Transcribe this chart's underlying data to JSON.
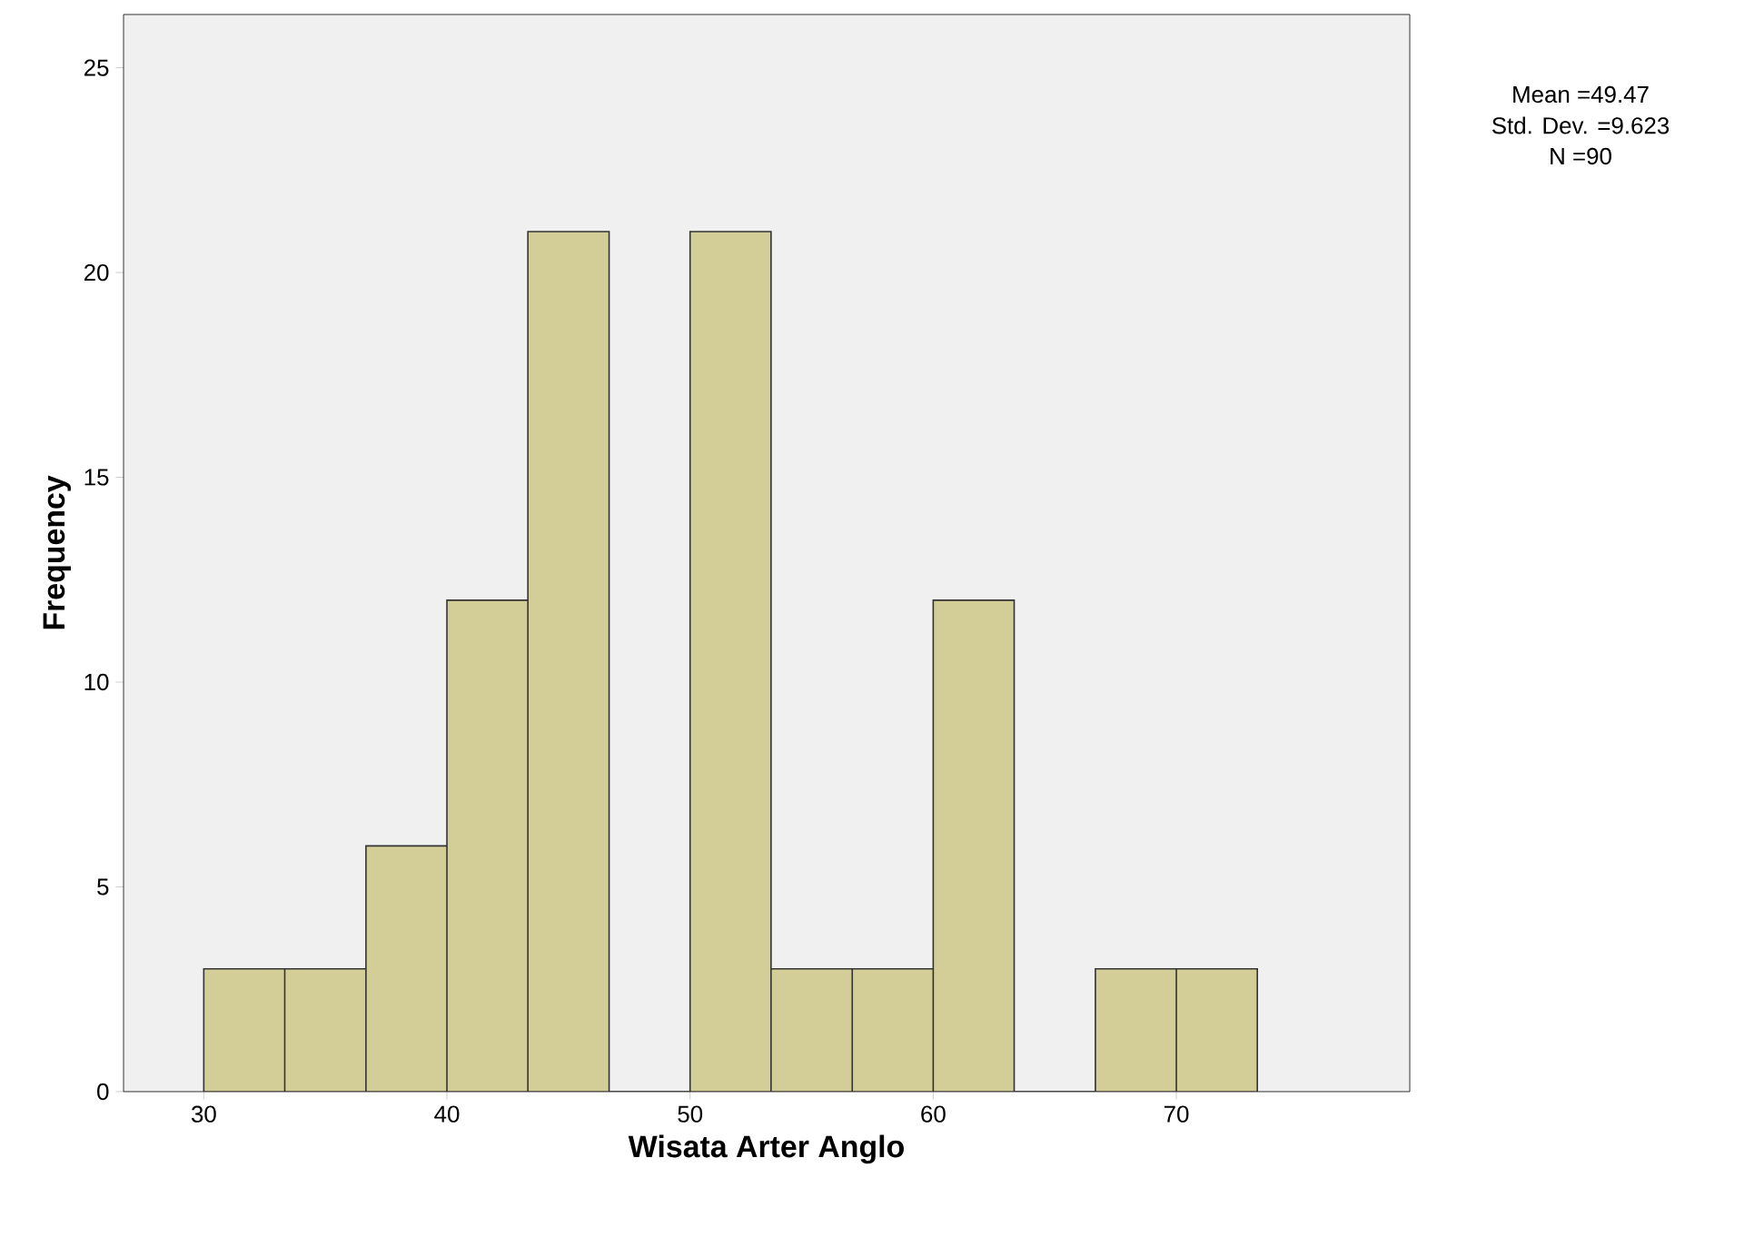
{
  "chart_data": {
    "type": "histogram",
    "xlabel": "Wisata Arter Anglo",
    "ylabel": "Frequency",
    "bins": [
      30,
      33.33,
      36.67,
      40,
      43.33,
      46.67,
      50,
      53.33,
      56.67,
      60,
      63.33,
      66.67,
      70,
      73.33
    ],
    "values": [
      3,
      3,
      6,
      12,
      21,
      0,
      21,
      3,
      3,
      12,
      0,
      3,
      3
    ],
    "color": "#d3ce97",
    "xlim": [
      26.7,
      79.6
    ],
    "ylim": [
      0,
      26.3
    ],
    "xticks": [
      30,
      40,
      50,
      60,
      70
    ],
    "yticks": [
      0,
      5,
      10,
      15,
      20,
      25
    ],
    "annotations": [
      "Mean =49.47",
      "Std. Dev. =9.623",
      "N =90"
    ]
  }
}
